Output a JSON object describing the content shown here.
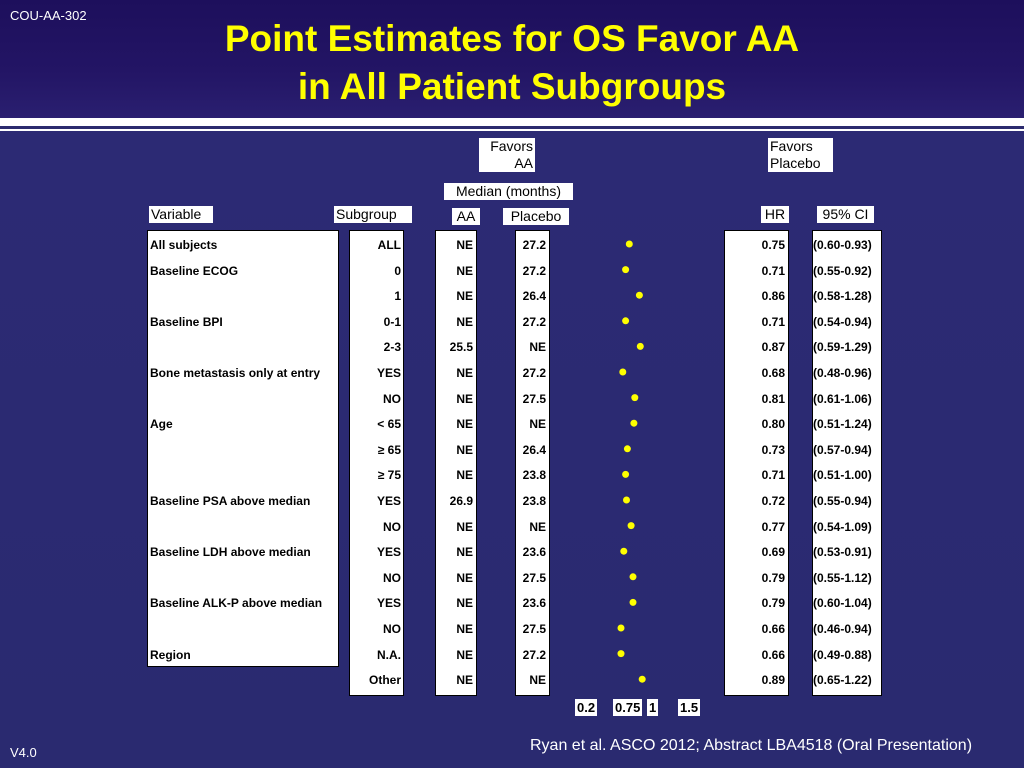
{
  "slide": {
    "id_tag": "COU-AA-302",
    "title_line1": "Point Estimates for OS Favor AA",
    "title_line2": "in All Patient Subgroups",
    "version": "V4.0",
    "citation": "Ryan et al. ASCO 2012; Abstract LBA4518 (Oral Presentation)"
  },
  "headers": {
    "favors_aa_l1": "Favors",
    "favors_aa_l2": "AA",
    "favors_placebo_l1": "Favors",
    "favors_placebo_l2": "Placebo",
    "median": "Median (months)",
    "variable": "Variable",
    "subgroup": "Subgroup",
    "aa": "AA",
    "placebo": "Placebo",
    "hr": "HR",
    "ci": "95% CI"
  },
  "rows": [
    {
      "variable": "All subjects",
      "subgroup": "ALL",
      "aa": "NE",
      "placebo": "27.2",
      "hr": "0.75",
      "ci": "(0.60-0.93)"
    },
    {
      "variable": "Baseline ECOG",
      "subgroup": "0",
      "aa": "NE",
      "placebo": "27.2",
      "hr": "0.71",
      "ci": "(0.55-0.92)"
    },
    {
      "variable": "",
      "subgroup": "1",
      "aa": "NE",
      "placebo": "26.4",
      "hr": "0.86",
      "ci": "(0.58-1.28)"
    },
    {
      "variable": "Baseline BPI",
      "subgroup": "0-1",
      "aa": "NE",
      "placebo": "27.2",
      "hr": "0.71",
      "ci": "(0.54-0.94)"
    },
    {
      "variable": "",
      "subgroup": "2-3",
      "aa": "25.5",
      "placebo": "NE",
      "hr": "0.87",
      "ci": "(0.59-1.29)"
    },
    {
      "variable": "Bone metastasis only at entry",
      "subgroup": "YES",
      "aa": "NE",
      "placebo": "27.2",
      "hr": "0.68",
      "ci": "(0.48-0.96)"
    },
    {
      "variable": "",
      "subgroup": "NO",
      "aa": "NE",
      "placebo": "27.5",
      "hr": "0.81",
      "ci": "(0.61-1.06)"
    },
    {
      "variable": "Age",
      "subgroup": "< 65",
      "aa": "NE",
      "placebo": "NE",
      "hr": "0.80",
      "ci": "(0.51-1.24)"
    },
    {
      "variable": "",
      "subgroup": "≥ 65",
      "aa": "NE",
      "placebo": "26.4",
      "hr": "0.73",
      "ci": "(0.57-0.94)"
    },
    {
      "variable": "",
      "subgroup": "≥ 75",
      "aa": "NE",
      "placebo": "23.8",
      "hr": "0.71",
      "ci": "(0.51-1.00)"
    },
    {
      "variable": "Baseline PSA above median",
      "subgroup": "YES",
      "aa": "26.9",
      "placebo": "23.8",
      "hr": "0.72",
      "ci": "(0.55-0.94)"
    },
    {
      "variable": "",
      "subgroup": "NO",
      "aa": "NE",
      "placebo": "NE",
      "hr": "0.77",
      "ci": "(0.54-1.09)"
    },
    {
      "variable": "Baseline LDH above median",
      "subgroup": "YES",
      "aa": "NE",
      "placebo": "23.6",
      "hr": "0.69",
      "ci": "(0.53-0.91)"
    },
    {
      "variable": "",
      "subgroup": "NO",
      "aa": "NE",
      "placebo": "27.5",
      "hr": "0.79",
      "ci": "(0.55-1.12)"
    },
    {
      "variable": "Baseline ALK-P above median",
      "subgroup": "YES",
      "aa": "NE",
      "placebo": "23.6",
      "hr": "0.79",
      "ci": "(0.60-1.04)"
    },
    {
      "variable": "",
      "subgroup": "NO",
      "aa": "NE",
      "placebo": "27.5",
      "hr": "0.66",
      "ci": "(0.46-0.94)"
    },
    {
      "variable": "Region",
      "subgroup": "N.A.",
      "aa": "NE",
      "placebo": "27.2",
      "hr": "0.66",
      "ci": "(0.49-0.88)"
    },
    {
      "variable": "",
      "subgroup": "Other",
      "aa": "NE",
      "placebo": "NE",
      "hr": "0.89",
      "ci": "(0.65-1.22)"
    }
  ],
  "chart_data": {
    "type": "scatter",
    "title": "Point Estimates for OS Favor AA in All Patient Subgroups",
    "xlabel": "",
    "ylabel": "",
    "x_ticks": [
      "0.2",
      "0.75",
      "1",
      "1.5"
    ],
    "categories": [
      "All subjects ALL",
      "Baseline ECOG 0",
      "Baseline ECOG 1",
      "Baseline BPI 0-1",
      "Baseline BPI 2-3",
      "Bone metastasis only at entry YES",
      "Bone metastasis only at entry NO",
      "Age < 65",
      "Age ≥ 65",
      "Age ≥ 75",
      "Baseline PSA above median YES",
      "Baseline PSA above median NO",
      "Baseline LDH above median YES",
      "Baseline LDH above median NO",
      "Baseline ALK-P above median YES",
      "Baseline ALK-P above median NO",
      "Region N.A.",
      "Region Other"
    ],
    "values": [
      0.75,
      0.71,
      0.86,
      0.71,
      0.87,
      0.68,
      0.81,
      0.8,
      0.73,
      0.71,
      0.72,
      0.77,
      0.69,
      0.79,
      0.79,
      0.66,
      0.66,
      0.89
    ],
    "marker_color": "#ffff00",
    "grid": false
  }
}
